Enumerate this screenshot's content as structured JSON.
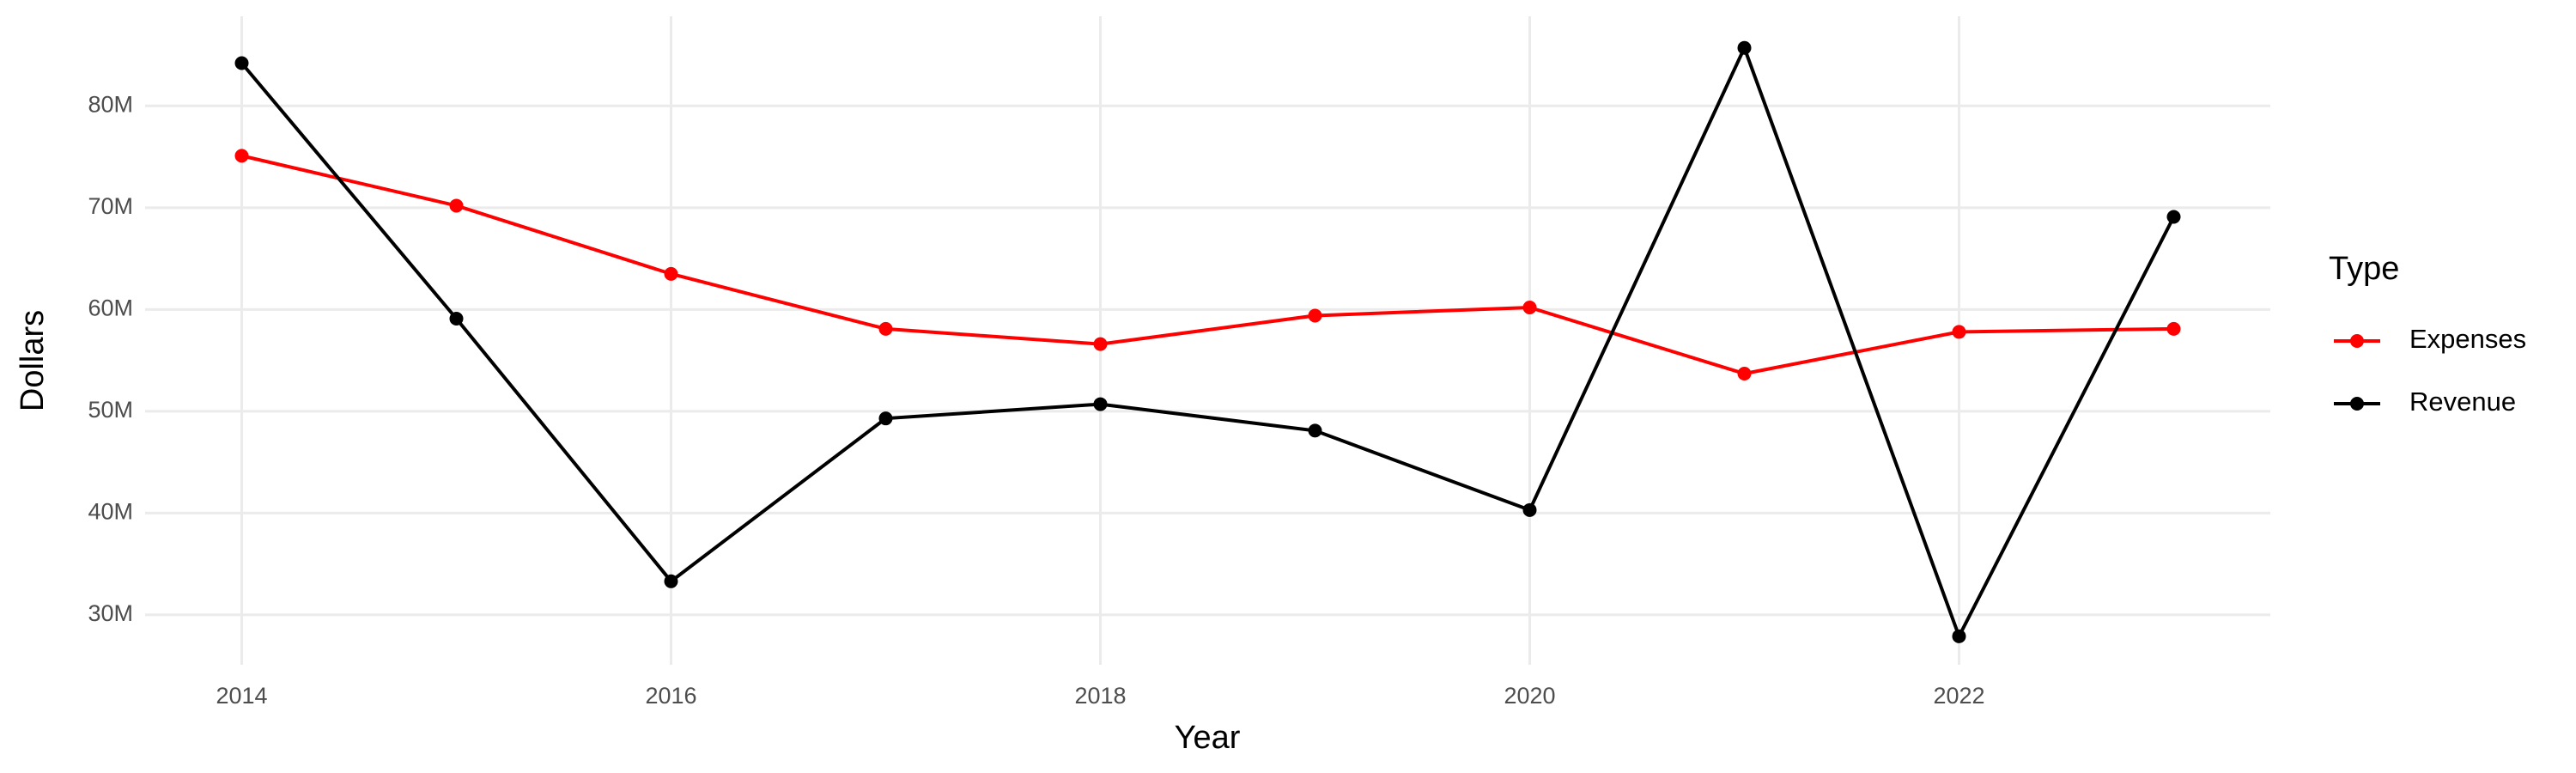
{
  "chart_data": {
    "type": "line",
    "x_label": "Year",
    "y_label": "Dollars",
    "legend_title": "Type",
    "x": [
      2014,
      2015,
      2016,
      2017,
      2018,
      2019,
      2020,
      2021,
      2022,
      2023
    ],
    "series": [
      {
        "name": "Expenses",
        "color": "#ff0000",
        "values": [
          75100000,
          70200000,
          63500000,
          58100000,
          56600000,
          59400000,
          60200000,
          53700000,
          57800000,
          58100000
        ]
      },
      {
        "name": "Revenue",
        "color": "#000000",
        "values": [
          84200000,
          59100000,
          33300000,
          49300000,
          50700000,
          48100000,
          40300000,
          85700000,
          27900000,
          69100000
        ]
      }
    ],
    "xlim": [
      2013.55,
      2023.45
    ],
    "xticks": [
      2014,
      2016,
      2018,
      2020,
      2022
    ],
    "ylim": [
      25100000,
      88800000
    ],
    "yticks": [
      {
        "value": 30000000,
        "label": "30M"
      },
      {
        "value": 40000000,
        "label": "40M"
      },
      {
        "value": 50000000,
        "label": "50M"
      },
      {
        "value": 60000000,
        "label": "60M"
      },
      {
        "value": 70000000,
        "label": "70M"
      },
      {
        "value": 80000000,
        "label": "80M"
      }
    ],
    "grid": true,
    "legend": "right"
  }
}
